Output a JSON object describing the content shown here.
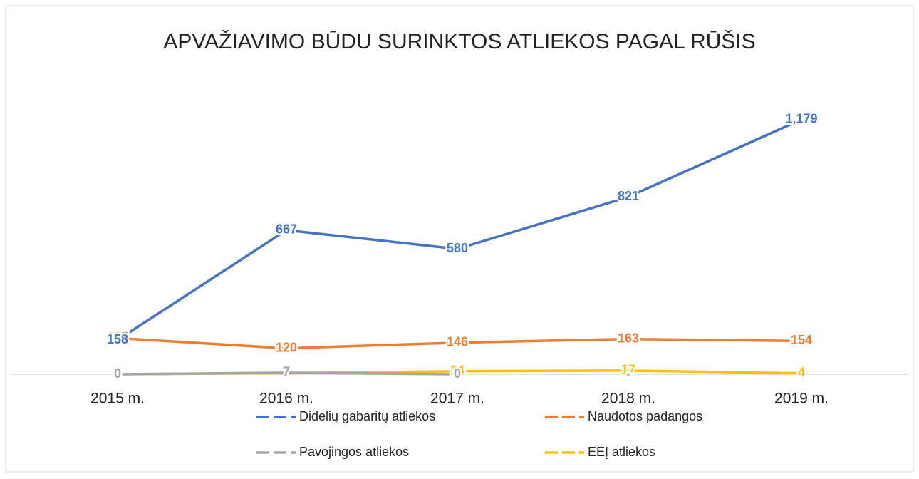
{
  "chart_data": {
    "type": "line",
    "title": "APVAŽIAVIMO BŪDU SURINKTOS ATLIEKOS PAGAL RŪŠIS",
    "categories": [
      "2015 m.",
      "2016 m.",
      "2017 m.",
      "2018 m.",
      "2019 m."
    ],
    "series": [
      {
        "name": "Didelių gabaritų atliekos",
        "color": "#4472c4",
        "values": [
          158,
          667,
          580,
          821,
          1179
        ],
        "value_labels": [
          "158",
          "667",
          "580",
          "821",
          "1 179"
        ]
      },
      {
        "name": "Naudotos padangos",
        "color": "#ed7d31",
        "values": [
          167,
          120,
          146,
          163,
          154
        ]
      },
      {
        "name": "Pavojingos atliekos",
        "color": "#a5a5a5",
        "values": [
          0,
          7,
          0,
          null,
          null
        ],
        "value_labels": [
          "0",
          "7",
          "0",
          "-",
          null
        ]
      },
      {
        "name": "EEĮ atliekos",
        "color": "#ffc000",
        "values": [
          0,
          5,
          14,
          17,
          4
        ],
        "value_labels": [
          "0",
          null,
          "14",
          "17",
          "4"
        ]
      }
    ]
  }
}
